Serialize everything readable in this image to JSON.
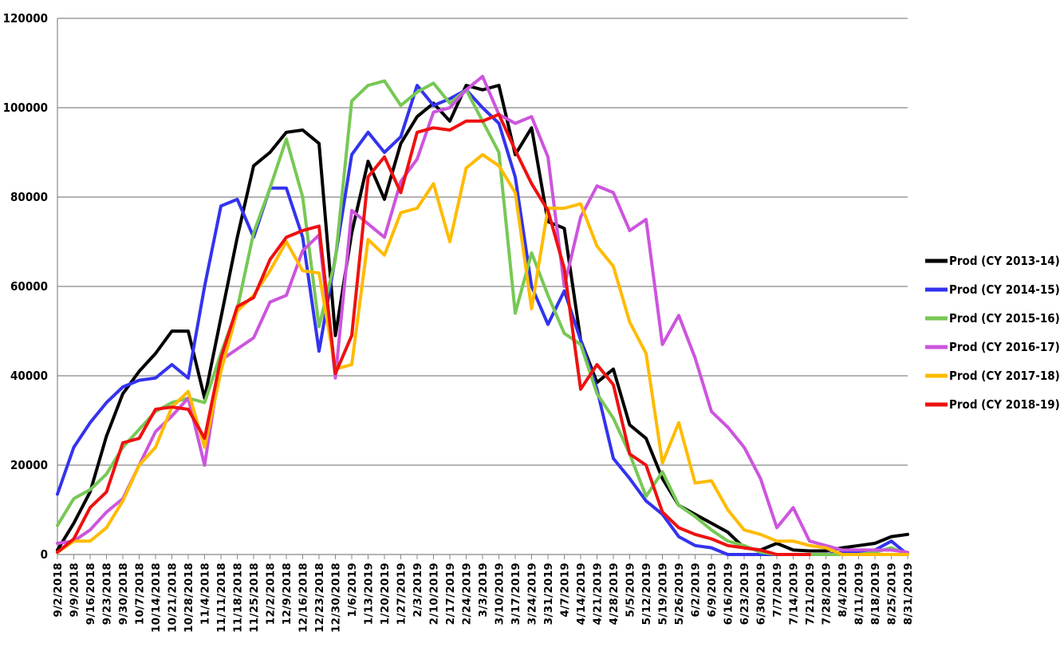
{
  "chart_data": {
    "type": "line",
    "title": "",
    "xlabel": "",
    "ylabel": "",
    "ylim": [
      0,
      120000
    ],
    "yticks": [
      0,
      20000,
      40000,
      60000,
      80000,
      100000,
      120000
    ],
    "grid": "horizontal",
    "legend_position": "right",
    "categories": [
      "9/2/2018",
      "9/9/2018",
      "9/16/2018",
      "9/23/2018",
      "9/30/2018",
      "10/7/2018",
      "10/14/2018",
      "10/21/2018",
      "10/28/2018",
      "11/4/2018",
      "11/11/2018",
      "11/18/2018",
      "11/25/2018",
      "12/2/2018",
      "12/9/2018",
      "12/16/2018",
      "12/23/2018",
      "12/30/2018",
      "1/6/2019",
      "1/13/2019",
      "1/20/2019",
      "1/27/2019",
      "2/3/2019",
      "2/10/2019",
      "2/17/2019",
      "2/24/2019",
      "3/3/2019",
      "3/10/2019",
      "3/17/2019",
      "3/24/2019",
      "3/31/2019",
      "4/7/2019",
      "4/14/2019",
      "4/21/2019",
      "4/28/2019",
      "5/5/2019",
      "5/12/2019",
      "5/19/2019",
      "5/26/2019",
      "6/2/2019",
      "6/9/2019",
      "6/16/2019",
      "6/23/2019",
      "6/30/2019",
      "7/7/2019",
      "7/14/2019",
      "7/21/2019",
      "7/28/2019",
      "8/4/2019",
      "8/11/2019",
      "8/18/2019",
      "8/25/2019",
      "8/31/2019"
    ],
    "series": [
      {
        "name": "Prod (CY 2013-14)",
        "color": "#000000",
        "values": [
          1000,
          7000,
          14000,
          26500,
          36000,
          41000,
          45000,
          50000,
          50000,
          35000,
          53000,
          71000,
          87000,
          90000,
          94500,
          95000,
          92000,
          49000,
          72000,
          88000,
          79500,
          92000,
          98000,
          101000,
          97000,
          105000,
          104000,
          105000,
          89500,
          95500,
          74500,
          73000,
          48000,
          38500,
          41500,
          29000,
          26000,
          17000,
          11000,
          9000,
          7000,
          5000,
          1500,
          1000,
          2500,
          1000,
          800,
          800,
          1500,
          2000,
          2500,
          4000,
          4500
        ]
      },
      {
        "name": "Prod (CY 2014-15)",
        "color": "#3333ee",
        "values": [
          13500,
          24000,
          29500,
          34000,
          37500,
          39000,
          39500,
          42500,
          39500,
          60000,
          78000,
          79500,
          71000,
          82000,
          82000,
          71000,
          45500,
          66500,
          89500,
          94500,
          90000,
          93500,
          105000,
          100500,
          102000,
          104000,
          100000,
          96500,
          84500,
          60000,
          51500,
          59000,
          48000,
          37000,
          21500,
          17000,
          12000,
          9000,
          4000,
          2000,
          1500,
          0,
          0,
          0,
          0,
          0,
          0,
          0,
          500,
          500,
          1000,
          3000,
          0
        ]
      },
      {
        "name": "Prod (CY 2015-16)",
        "color": "#77c855",
        "values": [
          6500,
          12500,
          14500,
          18000,
          24000,
          28000,
          32000,
          34000,
          35000,
          34000,
          45000,
          55000,
          72000,
          82000,
          93000,
          80000,
          51000,
          66000,
          101500,
          105000,
          106000,
          100500,
          103500,
          105500,
          101000,
          104000,
          97000,
          90000,
          54000,
          67500,
          58000,
          49500,
          47000,
          36000,
          30500,
          22500,
          13000,
          18500,
          11000,
          8500,
          5500,
          3000,
          2000,
          500,
          0,
          0,
          0,
          0,
          0,
          0,
          500,
          1500,
          0
        ]
      },
      {
        "name": "Prod (CY 2016-17)",
        "color": "#cc55dd",
        "values": [
          2500,
          3000,
          5500,
          9500,
          12500,
          20000,
          27500,
          31000,
          35000,
          20000,
          43500,
          46000,
          48500,
          56500,
          58000,
          68000,
          71500,
          39500,
          77000,
          74000,
          71000,
          83500,
          88500,
          99000,
          100000,
          104000,
          107000,
          98500,
          96500,
          98000,
          89000,
          60000,
          75500,
          82500,
          81000,
          72500,
          75000,
          47000,
          53500,
          44000,
          32000,
          28500,
          24000,
          17000,
          6000,
          10500,
          3000,
          2000,
          1000,
          1000,
          1000,
          1000,
          500
        ]
      },
      {
        "name": "Prod (CY 2017-18)",
        "color": "#ffbb00",
        "values": [
          500,
          3000,
          3000,
          6000,
          12000,
          20000,
          24000,
          33000,
          36500,
          24000,
          41000,
          54500,
          58000,
          63500,
          70000,
          63500,
          63000,
          41500,
          42500,
          70500,
          67000,
          76500,
          77500,
          83000,
          70000,
          86500,
          89500,
          87000,
          81000,
          55000,
          77500,
          77500,
          78500,
          69000,
          64500,
          52000,
          45000,
          20500,
          29500,
          16000,
          16500,
          10000,
          5500,
          4500,
          3000,
          3000,
          2000,
          1500,
          0,
          0,
          0,
          0,
          0
        ]
      },
      {
        "name": "Prod (CY 2018-19)",
        "color": "#ee1111",
        "values": [
          500,
          3500,
          10500,
          14000,
          25000,
          26000,
          32500,
          33000,
          32500,
          26000,
          44000,
          55500,
          57500,
          66000,
          71000,
          72500,
          73500,
          40500,
          49000,
          84500,
          89000,
          81000,
          94500,
          95500,
          95000,
          97000,
          97000,
          98500,
          90500,
          83000,
          77000,
          64000,
          37000,
          42500,
          38000,
          22500,
          20000,
          9500,
          6000,
          4500,
          3500,
          2000,
          1500,
          1000,
          0,
          0,
          0,
          null,
          null,
          null,
          null,
          null,
          null
        ]
      }
    ]
  }
}
